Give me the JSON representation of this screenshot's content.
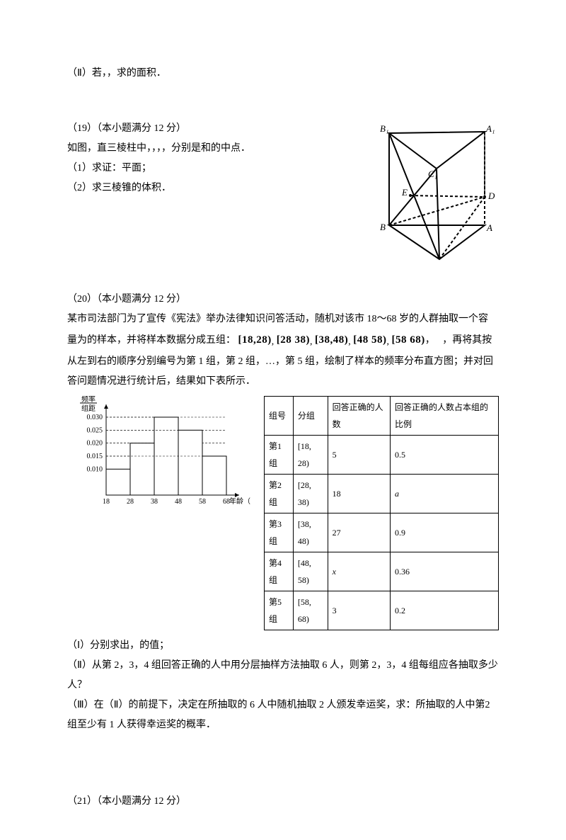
{
  "q18": {
    "part2": "（Ⅱ）若，，求的面积．"
  },
  "q19": {
    "heading": "（19）（本小题满分 12 分）",
    "line1": "如图，直三棱柱中，，，，分别是和的中点．",
    "part1": "（1）求证：平面；",
    "part2": "（2）求三棱锥的体积．"
  },
  "q20": {
    "heading": "（20）（本小题满分 12 分）",
    "intro_a": "某市司法部门为了宣传《宪法》举办法律知识问答活动，随机对该市 18～68 岁的人群抽取一个容",
    "intro_b_pre": "量为的样本，并将样本数据分成五组：",
    "intervals": [
      "[18,28)",
      "[28 38)",
      "[38,48)",
      "[48 58)",
      "[58 68)"
    ],
    "intro_b_post": "，再将其按",
    "intro_c": "从左到右的顺序分别编号为第 1 组，第 2 组，…，第 5 组，绘制了样本的频率分布直方图；并对回",
    "intro_d": "答问题情况进行统计后，结果如下表所示．",
    "part1": "（Ⅰ）分别求出，的值；",
    "part2": "（Ⅱ）从第 2，3，4 组回答正确的人中用分层抽样方法抽取 6 人，则第 2，3，4 组每组应各抽取多少人？",
    "part3": "（Ⅲ）在（Ⅱ）的前提下，决定在所抽取的 6 人中随机抽取 2 人颁发幸运奖，求：所抽取的人中第2 组至少有 1 人获得幸运奖的概率．",
    "table": {
      "headers": [
        "组号",
        "分组",
        "回答正确的人数",
        "回答正确的人数占本组的比例"
      ],
      "rows": [
        [
          "第1组",
          "[18, 28)",
          "5",
          "0.5"
        ],
        [
          "第2组",
          "[28, 38)",
          "18",
          "a"
        ],
        [
          "第3组",
          "[38, 48)",
          "27",
          "0.9"
        ],
        [
          "第4组",
          "[48, 58)",
          "x",
          "0.36"
        ],
        [
          "第5组",
          "[58, 68)",
          "3",
          "0.2"
        ]
      ]
    },
    "histogram": {
      "y_title_top": "频率",
      "y_title_bot": "组距",
      "y_ticks": [
        "0.030",
        "0.025",
        "0.020",
        "0.015",
        "0.010"
      ],
      "x_ticks": [
        "18",
        "28",
        "38",
        "48",
        "58",
        "68"
      ],
      "x_label": "年龄（岁）",
      "series": [
        {
          "from": 18,
          "to": 28,
          "h": 0.01
        },
        {
          "from": 28,
          "to": 38,
          "h": 0.02
        },
        {
          "from": 38,
          "to": 48,
          "h": 0.03
        },
        {
          "from": 48,
          "to": 58,
          "h": 0.025
        },
        {
          "from": 58,
          "to": 68,
          "h": 0.015
        }
      ],
      "axis_color": "#000000",
      "grid_color": "#000000",
      "bar_fill": "#ffffff",
      "bar_stroke_w": 1,
      "font_size": 10
    }
  },
  "q21": {
    "heading": "（21）（本小题满分 12 分）"
  },
  "prism_labels": {
    "B1": "B₁",
    "A1": "A₁",
    "C1": "C₁",
    "E": "E",
    "D": "D",
    "B": "B",
    "A": "A",
    "C": "C"
  }
}
